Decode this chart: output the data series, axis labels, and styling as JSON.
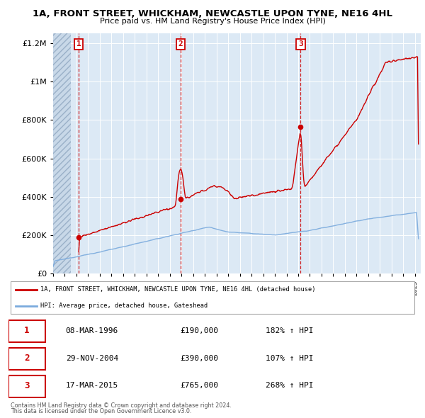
{
  "title": "1A, FRONT STREET, WHICKHAM, NEWCASTLE UPON TYNE, NE16 4HL",
  "subtitle": "Price paid vs. HM Land Registry's House Price Index (HPI)",
  "legend_line1": "1A, FRONT STREET, WHICKHAM, NEWCASTLE UPON TYNE, NE16 4HL (detached house)",
  "legend_line2": "HPI: Average price, detached house, Gateshead",
  "transactions": [
    {
      "num": 1,
      "date": "08-MAR-1996",
      "price": "£190,000",
      "hpi": "182% ↑ HPI",
      "year": 1996.19,
      "value": 190000
    },
    {
      "num": 2,
      "date": "29-NOV-2004",
      "price": "£390,000",
      "hpi": "107% ↑ HPI",
      "year": 2004.91,
      "value": 390000
    },
    {
      "num": 3,
      "date": "17-MAR-2015",
      "price": "£765,000",
      "hpi": "268% ↑ HPI",
      "year": 2015.21,
      "value": 765000
    }
  ],
  "footnote1": "Contains HM Land Registry data © Crown copyright and database right 2024.",
  "footnote2": "This data is licensed under the Open Government Licence v3.0.",
  "ylim": [
    0,
    1250000
  ],
  "xlim_start": 1994.0,
  "xlim_end": 2025.5,
  "red_line_color": "#cc0000",
  "blue_line_color": "#7aaadd",
  "background_color": "#dce9f5",
  "grid_color": "#ffffff",
  "hatch_region_end": 1995.5
}
